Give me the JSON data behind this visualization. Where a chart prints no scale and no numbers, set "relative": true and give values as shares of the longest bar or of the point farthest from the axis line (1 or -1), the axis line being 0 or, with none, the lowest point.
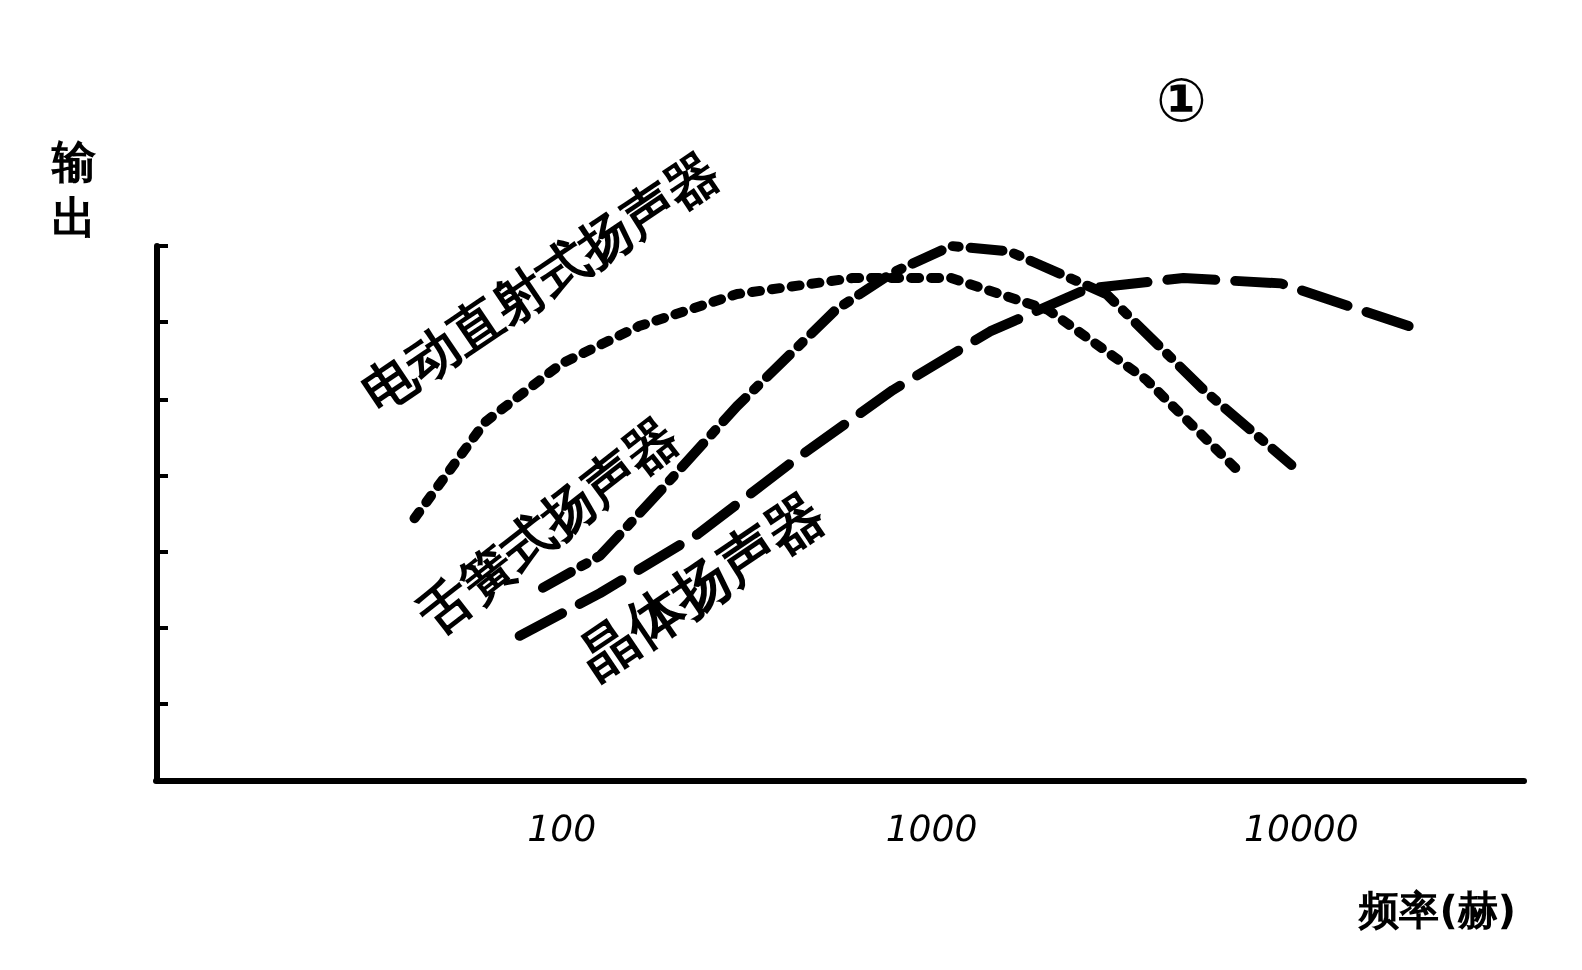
{
  "chart_data": {
    "type": "line",
    "relative": true,
    "xlabel": "频率(赫)",
    "ylabel": "输出",
    "log": "x",
    "xlim": [
      8,
      40000
    ],
    "xticks": [
      100,
      1000,
      10000
    ],
    "grid": false,
    "legend": false,
    "marker": "none",
    "annotations": [
      "①"
    ],
    "series": [
      {
        "name": "电动直射式扬声器",
        "color": "#000000",
        "line_style": "dotted",
        "x": [
          40,
          62,
          100,
          162,
          298,
          612,
          1130,
          2070,
          3800,
          6950
        ],
        "values": [
          0.49,
          0.67,
          0.78,
          0.85,
          0.91,
          0.94,
          0.94,
          0.88,
          0.75,
          0.57
        ]
      },
      {
        "name": "舌簧式扬声器",
        "color": "#000000",
        "line_style": "dashed",
        "x": [
          89,
          127,
          184,
          298,
          550,
          785,
          1130,
          1620,
          2970,
          5450,
          9400
        ],
        "values": [
          0.36,
          0.42,
          0.54,
          0.7,
          0.88,
          0.95,
          1,
          0.99,
          0.91,
          0.73,
          0.59
        ]
      },
      {
        "name": "晶体扬声器",
        "color": "#000000",
        "line_style": "dashed",
        "x": [
          77,
          127,
          233,
          428,
          785,
          1440,
          2640,
          4800,
          8800,
          19500
        ],
        "values": [
          0.27,
          0.35,
          0.46,
          0.6,
          0.73,
          0.84,
          0.92,
          0.94,
          0.93,
          0.85
        ]
      }
    ]
  }
}
